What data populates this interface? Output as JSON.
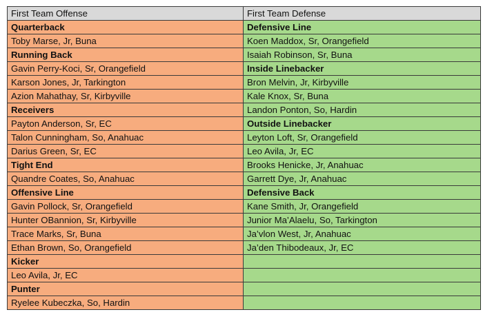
{
  "headers": {
    "offense": "First Team Offense",
    "defense": "First Team Defense"
  },
  "rows": [
    {
      "offense": "Quarterback",
      "offense_heading": true,
      "defense": "Defensive Line",
      "defense_heading": true
    },
    {
      "offense": "Toby Marse, Jr, Buna",
      "offense_heading": false,
      "defense": "Koen Maddox, Sr, Orangefield",
      "defense_heading": false
    },
    {
      "offense": "Running Back",
      "offense_heading": true,
      "defense": "Isaiah Robinson, Sr, Buna",
      "defense_heading": false
    },
    {
      "offense": "Gavin Perry-Koci, Sr, Orangefield",
      "offense_heading": false,
      "defense": "Inside Linebacker",
      "defense_heading": true
    },
    {
      "offense": "Karson Jones, Jr, Tarkington",
      "offense_heading": false,
      "defense": "Bron Melvin, Jr, Kirbyville",
      "defense_heading": false
    },
    {
      "offense": "Azion Mahathay, Sr, Kirbyville",
      "offense_heading": false,
      "defense": "Kale Knox, Sr, Buna",
      "defense_heading": false
    },
    {
      "offense": "Receivers",
      "offense_heading": true,
      "defense": "Landon Ponton, So, Hardin",
      "defense_heading": false
    },
    {
      "offense": "Payton Anderson, Sr, EC",
      "offense_heading": false,
      "defense": "Outside Linebacker",
      "defense_heading": true
    },
    {
      "offense": "Talon Cunningham, So, Anahuac",
      "offense_heading": false,
      "defense": "Leyton Loft, Sr, Orangefield",
      "defense_heading": false
    },
    {
      "offense": "Darius Green, Sr, EC",
      "offense_heading": false,
      "defense": "Leo Avila, Jr, EC",
      "defense_heading": false
    },
    {
      "offense": "Tight End",
      "offense_heading": true,
      "defense": "Brooks Henicke, Jr, Anahuac",
      "defense_heading": false
    },
    {
      "offense": "Quandre Coates, So, Anahuac",
      "offense_heading": false,
      "defense": "Garrett Dye, Jr, Anahuac",
      "defense_heading": false
    },
    {
      "offense": "Offensive Line",
      "offense_heading": true,
      "defense": "Defensive Back",
      "defense_heading": true
    },
    {
      "offense": "Gavin Pollock, Sr, Orangefield",
      "offense_heading": false,
      "defense": "Kane Smith, Jr, Orangefield",
      "defense_heading": false
    },
    {
      "offense": "Hunter OBannion, Sr, Kirbyville",
      "offense_heading": false,
      "defense": "Junior Ma’Alaelu, So, Tarkington",
      "defense_heading": false
    },
    {
      "offense": "Trace Marks, Sr, Buna",
      "offense_heading": false,
      "defense": "Ja’vlon West, Jr, Anahuac",
      "defense_heading": false
    },
    {
      "offense": "Ethan Brown, So, Orangefield",
      "offense_heading": false,
      "defense": "Ja’den Thibodeaux, Jr, EC",
      "defense_heading": false
    },
    {
      "offense": "Kicker",
      "offense_heading": true,
      "defense": "",
      "defense_heading": false
    },
    {
      "offense": "Leo Avila, Jr, EC",
      "offense_heading": false,
      "defense": "",
      "defense_heading": false
    },
    {
      "offense": "Punter",
      "offense_heading": true,
      "defense": "",
      "defense_heading": false
    },
    {
      "offense": "Ryelee Kubeczka, So, Hardin",
      "offense_heading": false,
      "defense": "",
      "defense_heading": false
    }
  ],
  "colors": {
    "offense_fill": "#f7ac7e",
    "defense_fill": "#a6d98b",
    "header_fill": "#d9d9d9",
    "border": "#3a3a3a"
  }
}
